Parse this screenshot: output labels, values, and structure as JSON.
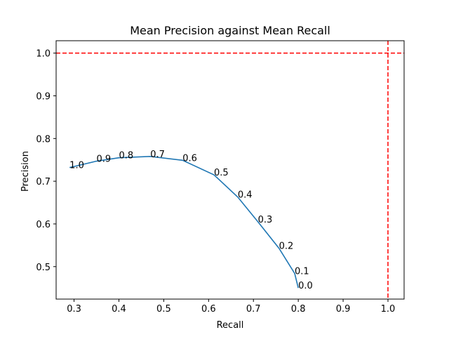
{
  "chart_data": {
    "type": "line",
    "title": "Mean Precision against Mean Recall",
    "xlabel": "Recall",
    "ylabel": "Precision",
    "xlim": [
      0.26,
      1.036
    ],
    "ylim": [
      0.424,
      1.029
    ],
    "xticks": [
      "0.3",
      "0.4",
      "0.5",
      "0.6",
      "0.7",
      "0.8",
      "0.9",
      "1.0"
    ],
    "yticks": [
      "0.5",
      "0.6",
      "0.7",
      "0.8",
      "0.9",
      "1.0"
    ],
    "grid": false,
    "series": [
      {
        "color": "#1f77b4",
        "points": [
          {
            "x": 0.29,
            "y": 0.732,
            "label": "1.0"
          },
          {
            "x": 0.35,
            "y": 0.747,
            "label": "0.9"
          },
          {
            "x": 0.4,
            "y": 0.755,
            "label": "0.8"
          },
          {
            "x": 0.47,
            "y": 0.758,
            "label": "0.7"
          },
          {
            "x": 0.542,
            "y": 0.749,
            "label": "0.6"
          },
          {
            "x": 0.612,
            "y": 0.715,
            "label": "0.5"
          },
          {
            "x": 0.665,
            "y": 0.663,
            "label": "0.4"
          },
          {
            "x": 0.71,
            "y": 0.605,
            "label": "0.3"
          },
          {
            "x": 0.757,
            "y": 0.543,
            "label": "0.2"
          },
          {
            "x": 0.792,
            "y": 0.484,
            "label": "0.1"
          },
          {
            "x": 0.8,
            "y": 0.45,
            "label": "0.0"
          }
        ]
      }
    ],
    "reference_lines": {
      "color": "#ff0000",
      "style": "dashed",
      "horizontal_y": 1.0,
      "vertical_x": 1.0
    }
  }
}
